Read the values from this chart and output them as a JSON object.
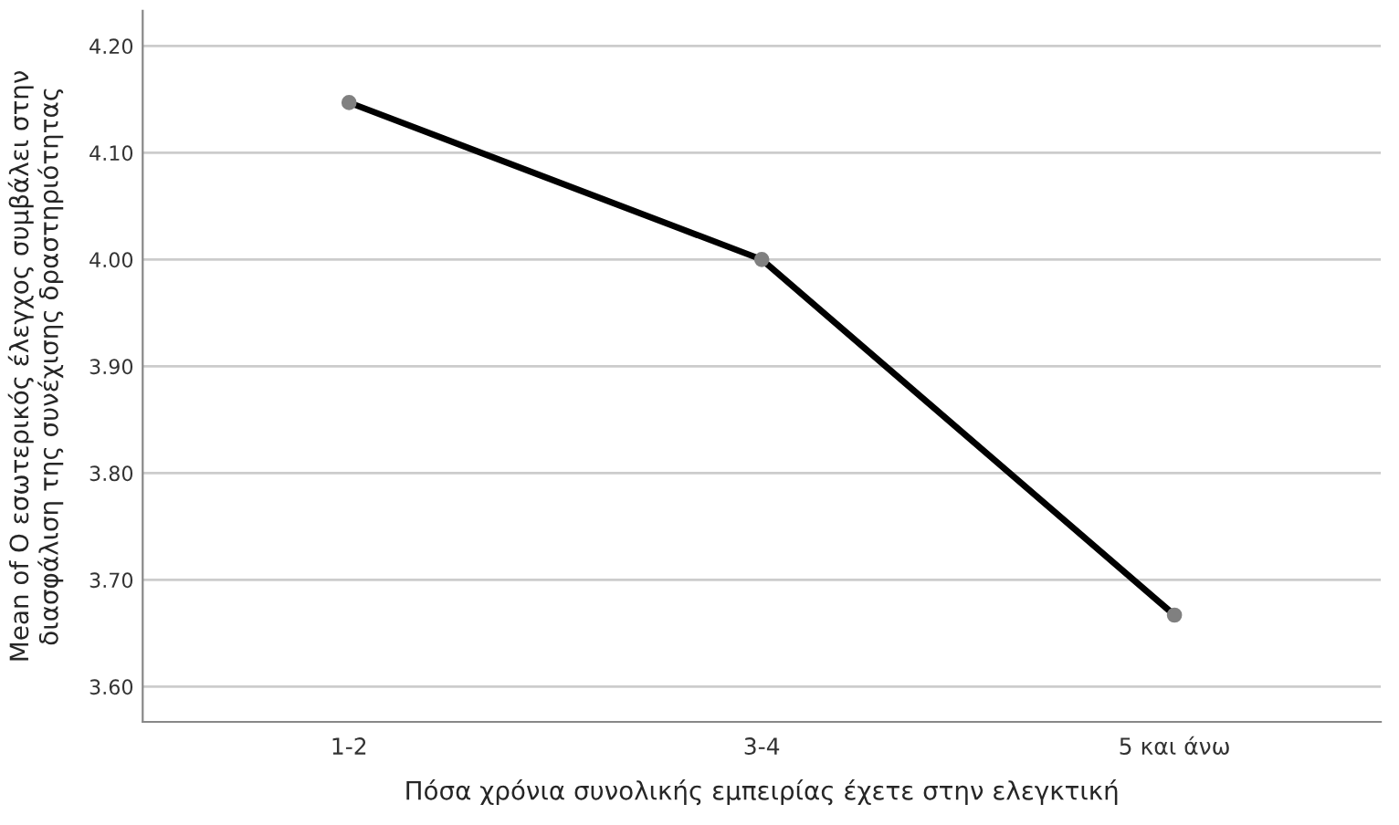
{
  "chart_data": {
    "type": "line",
    "xlabel": "Πόσα χρόνια συνολικής εμπειρίας έχετε στην ελεγκτική",
    "ylabel": "Mean of Ο εσωτερικός έλεγχος συμβάλει στην διασφάλιση της συνέχισης δραστηριότητας",
    "categories": [
      "1-2",
      "3-4",
      "5 και άνω"
    ],
    "series": [
      {
        "color": "#000000",
        "values": [
          4.147,
          4.0,
          3.667
        ]
      }
    ],
    "ylim": [
      3.567,
      4.233
    ],
    "yticks": [
      {
        "value": 3.6,
        "label": "3.60"
      },
      {
        "value": 3.7,
        "label": "3.70"
      },
      {
        "value": 3.8,
        "label": "3.80"
      },
      {
        "value": 3.9,
        "label": "3.90"
      },
      {
        "value": 4.0,
        "label": "4.00"
      },
      {
        "value": 4.1,
        "label": "4.10"
      },
      {
        "value": 4.2,
        "label": "4.20"
      }
    ],
    "grid": "y",
    "marker": "circle",
    "line_style": "solid"
  }
}
